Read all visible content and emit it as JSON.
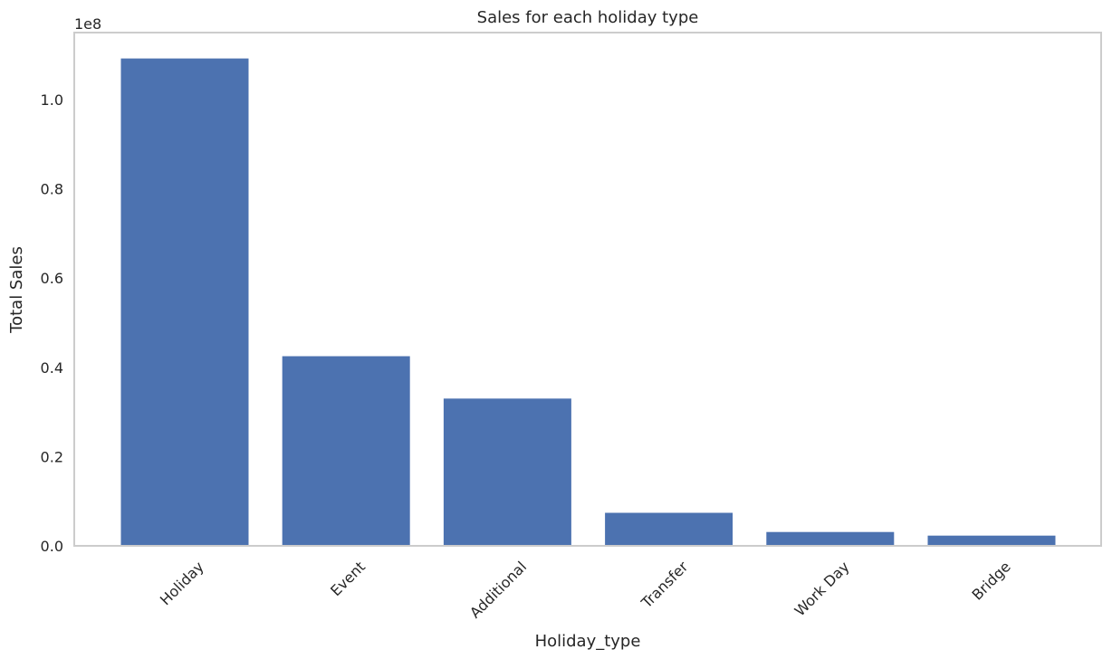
{
  "chart_data": {
    "type": "bar",
    "title": "Sales for each holiday type",
    "xlabel": "Holiday_type",
    "ylabel": "Total Sales",
    "y_offset_label": "1e8",
    "categories": [
      "Holiday",
      "Event",
      "Additional",
      "Transfer",
      "Work Day",
      "Bridge"
    ],
    "values": [
      109200000,
      42500000,
      33000000,
      7400000,
      3100000,
      2300000
    ],
    "ylim": [
      0,
      115000000
    ],
    "y_ticks": [
      0,
      20000000,
      40000000,
      60000000,
      80000000,
      100000000
    ],
    "y_tick_labels": [
      "0.0",
      "0.2",
      "0.4",
      "0.6",
      "0.8",
      "1.0"
    ],
    "x_tick_rotation_deg": 45,
    "grid": false,
    "bar_color": "#4c72b0",
    "axes_edge_color": "#cccccc"
  }
}
